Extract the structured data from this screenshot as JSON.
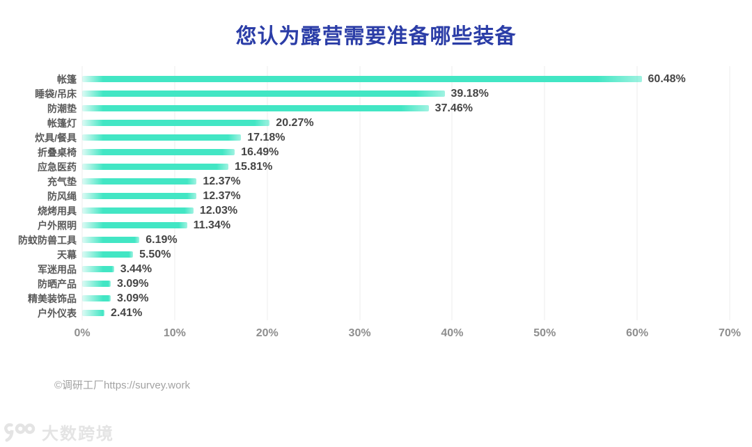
{
  "page": {
    "background": "#ffffff"
  },
  "title": {
    "text": "您认为露营需要准备哪些装备",
    "color": "#2B3DA7"
  },
  "chart_data": {
    "type": "bar",
    "orientation": "horizontal",
    "title": "您认为露营需要准备哪些装备",
    "categories": [
      "帐篷",
      "睡袋/吊床",
      "防潮垫",
      "帐篷灯",
      "炊具/餐具",
      "折叠桌椅",
      "应急医药",
      "充气垫",
      "防风绳",
      "烧烤用具",
      "户外照明",
      "防蚊防兽工具",
      "天幕",
      "军迷用品",
      "防晒产品",
      "精美装饰品",
      "户外仪表"
    ],
    "values": [
      60.48,
      39.18,
      37.46,
      20.27,
      17.18,
      16.49,
      15.81,
      12.37,
      12.37,
      12.03,
      11.34,
      6.19,
      5.5,
      3.44,
      3.09,
      3.09,
      2.41
    ],
    "value_labels": [
      "60.48%",
      "39.18%",
      "37.46%",
      "20.27%",
      "17.18%",
      "16.49%",
      "15.81%",
      "12.37%",
      "12.37%",
      "12.03%",
      "11.34%",
      "6.19%",
      "5.50%",
      "3.44%",
      "3.09%",
      "3.09%",
      "2.41%"
    ],
    "xlabel": "",
    "ylabel": "",
    "xlim": [
      0,
      70
    ],
    "x_ticks": [
      "0%",
      "10%",
      "20%",
      "30%",
      "40%",
      "50%",
      "60%",
      "70%"
    ],
    "grid": true,
    "legend": false,
    "bar_color": "#42E6C4"
  },
  "footer": {
    "credit": "©调研工厂https://survey.work"
  },
  "watermark": {
    "text": "大数跨境",
    "icon": "100-smile-logo-icon"
  }
}
